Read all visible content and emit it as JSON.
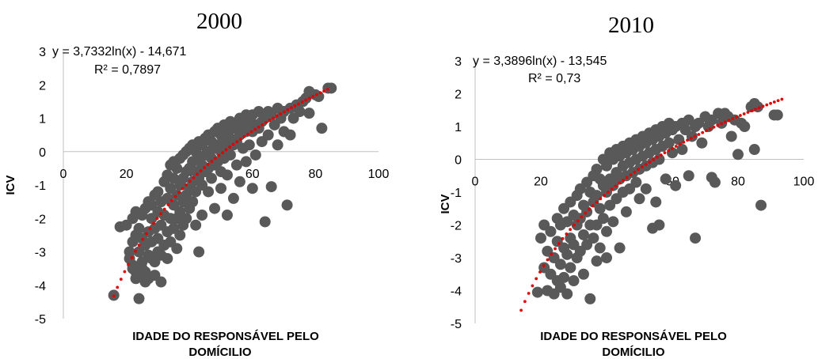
{
  "chart_data": [
    {
      "type": "scatter",
      "title": "2000",
      "xlabel": "IDADE DO RESPONSÁVEL PELO DOMÍCILIO",
      "ylabel": "ICV",
      "xlim": [
        0,
        100
      ],
      "ylim": [
        -5,
        3
      ],
      "x_ticks": [
        "0",
        "20",
        "40",
        "60",
        "80",
        "100"
      ],
      "y_ticks": [
        "3",
        "2",
        "1",
        "0",
        "-1",
        "-2",
        "-3",
        "-4",
        "-5"
      ],
      "trendline": {
        "type": "logarithmic",
        "a": 3.7332,
        "b": -14.671,
        "x_range": [
          16,
          85
        ],
        "color": "#e00000"
      },
      "equation_line1": "y = 3,7332ln(x) - 14,671",
      "equation_line2": "R² = 0,7897",
      "marker_color": "#595959",
      "points": [
        [
          16,
          -4.3
        ],
        [
          18,
          -2.25
        ],
        [
          20,
          -2.2
        ],
        [
          21,
          -3.0
        ],
        [
          21,
          -3.2
        ],
        [
          22,
          -3.4
        ],
        [
          22,
          -2.0
        ],
        [
          22,
          -2.7
        ],
        [
          22,
          -3.5
        ],
        [
          23,
          -3.8
        ],
        [
          23,
          -2.5
        ],
        [
          23,
          -1.8
        ],
        [
          23,
          -3.6
        ],
        [
          24,
          -4.4
        ],
        [
          24,
          -2.3
        ],
        [
          24,
          -3.0
        ],
        [
          24,
          -3.7
        ],
        [
          25,
          -3.3
        ],
        [
          25,
          -2.6
        ],
        [
          25,
          -1.9
        ],
        [
          25,
          -3.5
        ],
        [
          26,
          -1.7
        ],
        [
          26,
          -2.8
        ],
        [
          26,
          -3.6
        ],
        [
          26,
          -3.9
        ],
        [
          27,
          -2.4
        ],
        [
          27,
          -3.1
        ],
        [
          27,
          -1.5
        ],
        [
          27,
          -3.8
        ],
        [
          28,
          -2.0
        ],
        [
          28,
          -3.2
        ],
        [
          28,
          -1.6
        ],
        [
          28,
          -2.7
        ],
        [
          29,
          -1.3
        ],
        [
          29,
          -2.3
        ],
        [
          29,
          -3.3
        ],
        [
          29,
          -3.7
        ],
        [
          30,
          -1.8
        ],
        [
          30,
          -2.6
        ],
        [
          30,
          -1.2
        ],
        [
          30,
          -3.0
        ],
        [
          31,
          -1.5
        ],
        [
          31,
          -2.2
        ],
        [
          31,
          -3.1
        ],
        [
          31,
          -3.9
        ],
        [
          32,
          -0.9
        ],
        [
          32,
          -1.9
        ],
        [
          32,
          -2.8
        ],
        [
          33,
          -1.4
        ],
        [
          33,
          -2.4
        ],
        [
          33,
          -0.7
        ],
        [
          33,
          -3.2
        ],
        [
          34,
          -1.1
        ],
        [
          34,
          -2.0
        ],
        [
          34,
          -0.4
        ],
        [
          34,
          -2.7
        ],
        [
          35,
          -0.8
        ],
        [
          35,
          -1.6
        ],
        [
          35,
          -2.3
        ],
        [
          35,
          -0.3
        ],
        [
          36,
          -0.5
        ],
        [
          36,
          -1.3
        ],
        [
          36,
          -2.0
        ],
        [
          36,
          -2.9
        ],
        [
          37,
          -0.2
        ],
        [
          37,
          -1.0
        ],
        [
          37,
          -1.8
        ],
        [
          37,
          -2.5
        ],
        [
          38,
          -0.1
        ],
        [
          38,
          -0.8
        ],
        [
          38,
          -1.5
        ],
        [
          38,
          -2.2
        ],
        [
          39,
          0.0
        ],
        [
          39,
          -0.6
        ],
        [
          39,
          -1.3
        ],
        [
          39,
          -2.0
        ],
        [
          40,
          0.1
        ],
        [
          40,
          -0.5
        ],
        [
          40,
          -1.1
        ],
        [
          40,
          -1.7
        ],
        [
          41,
          0.2
        ],
        [
          41,
          -0.3
        ],
        [
          41,
          -0.9
        ],
        [
          41,
          -1.5
        ],
        [
          42,
          0.0
        ],
        [
          42,
          -0.6
        ],
        [
          42,
          -1.2
        ],
        [
          42,
          -2.2
        ],
        [
          43,
          0.3
        ],
        [
          43,
          -0.2
        ],
        [
          43,
          -0.8
        ],
        [
          43,
          -3.0
        ],
        [
          44,
          0.2
        ],
        [
          44,
          -0.4
        ],
        [
          44,
          -1.0
        ],
        [
          44,
          -1.9
        ],
        [
          45,
          0.4
        ],
        [
          45,
          -0.1
        ],
        [
          45,
          -0.6
        ],
        [
          46,
          0.5
        ],
        [
          46,
          0.0
        ],
        [
          46,
          -0.5
        ],
        [
          46,
          -1.2
        ],
        [
          47,
          0.3
        ],
        [
          47,
          -0.2
        ],
        [
          47,
          -0.8
        ],
        [
          48,
          0.6
        ],
        [
          48,
          0.1
        ],
        [
          48,
          -0.4
        ],
        [
          48,
          -1.7
        ],
        [
          49,
          0.7
        ],
        [
          49,
          0.2
        ],
        [
          49,
          -0.3
        ],
        [
          50,
          0.5
        ],
        [
          50,
          0.0
        ],
        [
          50,
          -0.6
        ],
        [
          50,
          -1.1
        ],
        [
          51,
          0.8
        ],
        [
          51,
          0.3
        ],
        [
          51,
          -0.2
        ],
        [
          52,
          0.6
        ],
        [
          52,
          0.1
        ],
        [
          52,
          -0.7
        ],
        [
          52,
          -1.9
        ],
        [
          53,
          0.9
        ],
        [
          53,
          0.4
        ],
        [
          53,
          -0.1
        ],
        [
          54,
          0.7
        ],
        [
          54,
          0.2
        ],
        [
          54,
          -1.4
        ],
        [
          55,
          0.8
        ],
        [
          55,
          0.3
        ],
        [
          55,
          -0.4
        ],
        [
          56,
          1.0
        ],
        [
          56,
          0.5
        ],
        [
          56,
          -0.9
        ],
        [
          57,
          0.8
        ],
        [
          57,
          0.1
        ],
        [
          58,
          1.1
        ],
        [
          58,
          0.6
        ],
        [
          58,
          -0.3
        ],
        [
          59,
          0.9
        ],
        [
          59,
          0.2
        ],
        [
          60,
          1.1
        ],
        [
          60,
          0.6
        ],
        [
          60,
          -1.1
        ],
        [
          61,
          0.8
        ],
        [
          61,
          -0.1
        ],
        [
          62,
          1.2
        ],
        [
          62,
          0.7
        ],
        [
          63,
          0.9
        ],
        [
          63,
          0.3
        ],
        [
          64,
          -2.1
        ],
        [
          64,
          1.0
        ],
        [
          65,
          1.2
        ],
        [
          65,
          0.5
        ],
        [
          66,
          -1.05
        ],
        [
          66,
          1.1
        ],
        [
          67,
          0.8
        ],
        [
          68,
          1.3
        ],
        [
          68,
          0.2
        ],
        [
          69,
          1.0
        ],
        [
          70,
          1.2
        ],
        [
          70,
          0.6
        ],
        [
          71,
          -1.6
        ],
        [
          72,
          1.3
        ],
        [
          72,
          0.5
        ],
        [
          73,
          1.0
        ],
        [
          74,
          1.4
        ],
        [
          75,
          1.2
        ],
        [
          76,
          1.5
        ],
        [
          77,
          1.6
        ],
        [
          78,
          1.8
        ],
        [
          78,
          1.15
        ],
        [
          80,
          1.7
        ],
        [
          81,
          1.65
        ],
        [
          82,
          0.7
        ],
        [
          84,
          1.9
        ],
        [
          85,
          1.9
        ]
      ]
    },
    {
      "type": "scatter",
      "title": "2010",
      "xlabel": "IDADE DO RESPONSÁVEL PELO DOMÍCILIO",
      "ylabel": "ICV",
      "xlim": [
        0,
        100
      ],
      "ylim": [
        -5,
        3
      ],
      "x_ticks": [
        "0",
        "20",
        "40",
        "60",
        "80",
        "100"
      ],
      "y_ticks": [
        "3",
        "2",
        "1",
        "0",
        "-1",
        "-2",
        "-3",
        "-4",
        "-5"
      ],
      "trendline": {
        "type": "logarithmic",
        "a": 3.3896,
        "b": -13.545,
        "x_range": [
          14,
          94
        ],
        "color": "#e00000"
      },
      "equation_line1": "y = 3,3896ln(x) - 13,545",
      "equation_line2": "R² = 0,73",
      "marker_color": "#595959",
      "points": [
        [
          19,
          -4.05
        ],
        [
          20,
          -2.4
        ],
        [
          21,
          -2.0
        ],
        [
          21,
          -3.3
        ],
        [
          22,
          -4.0
        ],
        [
          22,
          -2.8
        ],
        [
          23,
          -2.2
        ],
        [
          23,
          -3.5
        ],
        [
          24,
          -3.0
        ],
        [
          24,
          -4.1
        ],
        [
          25,
          -2.5
        ],
        [
          25,
          -1.8
        ],
        [
          25,
          -3.7
        ],
        [
          26,
          -2.0
        ],
        [
          26,
          -3.2
        ],
        [
          26,
          -3.9
        ],
        [
          27,
          -1.5
        ],
        [
          27,
          -2.7
        ],
        [
          27,
          -3.6
        ],
        [
          28,
          -1.9
        ],
        [
          28,
          -2.9
        ],
        [
          28,
          -4.1
        ],
        [
          29,
          -1.3
        ],
        [
          29,
          -2.4
        ],
        [
          29,
          -3.3
        ],
        [
          30,
          -1.7
        ],
        [
          30,
          -2.6
        ],
        [
          30,
          -3.7
        ],
        [
          31,
          -1.1
        ],
        [
          31,
          -2.0
        ],
        [
          31,
          -3.0
        ],
        [
          32,
          -0.9
        ],
        [
          32,
          -1.8
        ],
        [
          32,
          -2.8
        ],
        [
          33,
          -1.4
        ],
        [
          33,
          -2.3
        ],
        [
          33,
          -3.5
        ],
        [
          34,
          -0.7
        ],
        [
          34,
          -1.6
        ],
        [
          34,
          -2.6
        ],
        [
          35,
          -1.0
        ],
        [
          35,
          -2.0
        ],
        [
          35,
          -4.25
        ],
        [
          36,
          -0.5
        ],
        [
          36,
          -1.3
        ],
        [
          36,
          -2.4
        ],
        [
          37,
          -0.3
        ],
        [
          37,
          -1.1
        ],
        [
          37,
          -2.0
        ],
        [
          37,
          -3.1
        ],
        [
          38,
          -0.6
        ],
        [
          38,
          -1.5
        ],
        [
          38,
          -2.7
        ],
        [
          39,
          0.0
        ],
        [
          39,
          -0.8
        ],
        [
          39,
          -1.8
        ],
        [
          40,
          -0.2
        ],
        [
          40,
          -1.0
        ],
        [
          40,
          -2.2
        ],
        [
          40,
          -3.0
        ],
        [
          41,
          0.2
        ],
        [
          41,
          -0.6
        ],
        [
          41,
          -1.4
        ],
        [
          42,
          0.0
        ],
        [
          42,
          -0.8
        ],
        [
          42,
          -1.9
        ],
        [
          43,
          0.3
        ],
        [
          43,
          -0.4
        ],
        [
          43,
          -1.2
        ],
        [
          44,
          0.1
        ],
        [
          44,
          -0.6
        ],
        [
          44,
          -2.7
        ],
        [
          45,
          0.4
        ],
        [
          45,
          -0.2
        ],
        [
          45,
          -1.0
        ],
        [
          46,
          0.2
        ],
        [
          46,
          -0.5
        ],
        [
          46,
          -1.6
        ],
        [
          47,
          0.5
        ],
        [
          47,
          -0.1
        ],
        [
          47,
          -0.9
        ],
        [
          48,
          0.3
        ],
        [
          48,
          -0.4
        ],
        [
          49,
          0.6
        ],
        [
          49,
          0.0
        ],
        [
          49,
          -0.7
        ],
        [
          50,
          0.4
        ],
        [
          50,
          -0.3
        ],
        [
          50,
          -1.2
        ],
        [
          51,
          0.7
        ],
        [
          51,
          0.1
        ],
        [
          52,
          0.5
        ],
        [
          52,
          -0.2
        ],
        [
          52,
          -0.9
        ],
        [
          53,
          0.8
        ],
        [
          53,
          0.2
        ],
        [
          54,
          0.6
        ],
        [
          54,
          -0.1
        ],
        [
          54,
          -2.1
        ],
        [
          55,
          0.9
        ],
        [
          55,
          0.3
        ],
        [
          55,
          -1.3
        ],
        [
          56,
          -2.0
        ],
        [
          56,
          0.7
        ],
        [
          56,
          0.0
        ],
        [
          57,
          1.0
        ],
        [
          57,
          0.4
        ],
        [
          58,
          0.8
        ],
        [
          58,
          -0.6
        ],
        [
          59,
          1.1
        ],
        [
          59,
          0.5
        ],
        [
          60,
          0.9
        ],
        [
          60,
          0.2
        ],
        [
          61,
          1.0
        ],
        [
          61,
          -0.8
        ],
        [
          62,
          0.6
        ],
        [
          63,
          1.1
        ],
        [
          63,
          0.3
        ],
        [
          64,
          0.9
        ],
        [
          65,
          1.2
        ],
        [
          65,
          -0.5
        ],
        [
          66,
          0.7
        ],
        [
          67,
          -2.4
        ],
        [
          67,
          1.0
        ],
        [
          68,
          1.1
        ],
        [
          69,
          0.5
        ],
        [
          70,
          1.3
        ],
        [
          71,
          1.0
        ],
        [
          72,
          -0.55
        ],
        [
          72,
          1.2
        ],
        [
          73,
          -0.7
        ],
        [
          74,
          1.4
        ],
        [
          75,
          1.1
        ],
        [
          76,
          1.4
        ],
        [
          77,
          1.3
        ],
        [
          78,
          0.7
        ],
        [
          79,
          1.2
        ],
        [
          80,
          0.15
        ],
        [
          81,
          1.1
        ],
        [
          82,
          1.0
        ],
        [
          84,
          1.6
        ],
        [
          85,
          1.7
        ],
        [
          85,
          0.3
        ],
        [
          86,
          1.6
        ],
        [
          87,
          -1.4
        ],
        [
          91,
          1.35
        ],
        [
          92,
          1.35
        ]
      ]
    }
  ]
}
